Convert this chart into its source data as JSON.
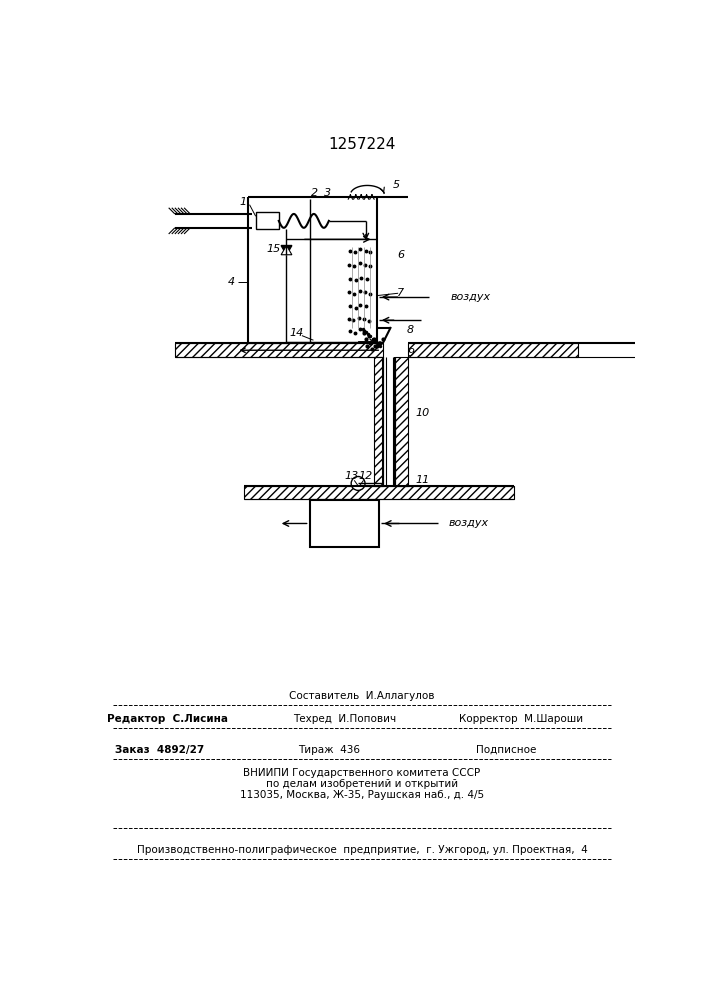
{
  "title": "1257224",
  "bg_color": "#ffffff",
  "line_color": "#000000",
  "footer": {
    "line1_center": "Составитель  И.Аллагулов",
    "line2_left": "Редактор  С.Лисина",
    "line2_center": "Техред  И.Попович",
    "line2_right": "Корректор  М.Шароши",
    "line3_left": "Заказ  4892/27",
    "line3_center": "Тираж  436",
    "line3_right": "Подписное",
    "line4": "ВНИИПИ Государственного комитета СССР",
    "line5": "по делам изобретений и открытий",
    "line6": "113035, Москва, Ж-35, Раушская наб., д. 4/5",
    "line7": "Производственно-полиграфическое  предприятие,  г. Ужгород, ул. Проектная,  4"
  }
}
